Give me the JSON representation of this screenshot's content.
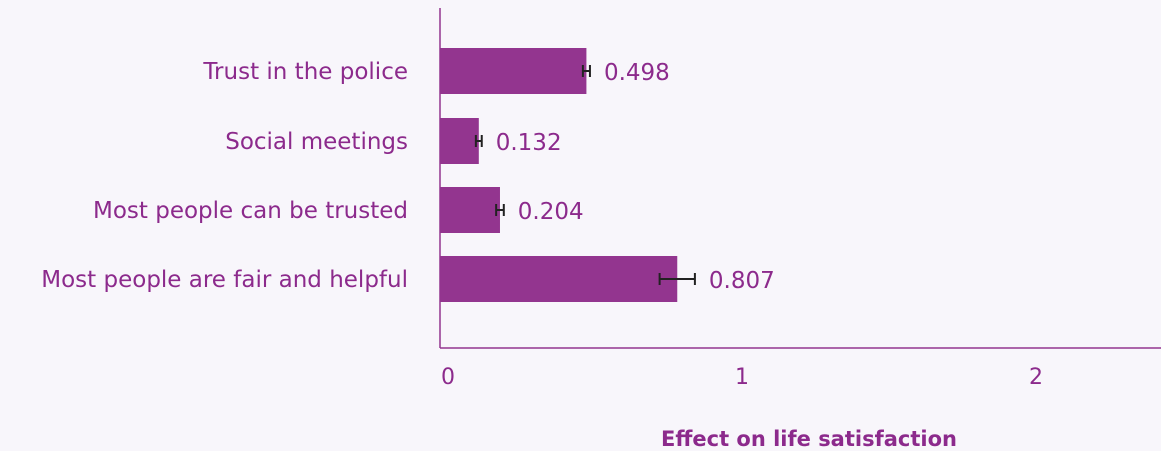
{
  "colors": {
    "bar": "#93358f",
    "axis": "#93358f",
    "text": "#8c2a8c",
    "error_bar": "#222222",
    "background": "#f8f6fb"
  },
  "chart_data": {
    "type": "bar",
    "orientation": "horizontal",
    "categories": [
      "Trust in the police",
      "Social meetings",
      "Most people can be trusted",
      "Most people are fair and helpful"
    ],
    "values": [
      0.498,
      0.132,
      0.204,
      0.807
    ],
    "value_labels": [
      "0.498",
      "0.132",
      "0.204",
      "0.807"
    ],
    "error": [
      0.012,
      0.01,
      0.013,
      0.06
    ],
    "xlabel": "Effect on life satisfaction",
    "ylabel": "",
    "xlim": [
      0,
      2.45
    ],
    "xticks": [
      0,
      1,
      2
    ],
    "xtick_labels": [
      "0",
      "1",
      "2"
    ],
    "grid": false,
    "legend": "none"
  }
}
